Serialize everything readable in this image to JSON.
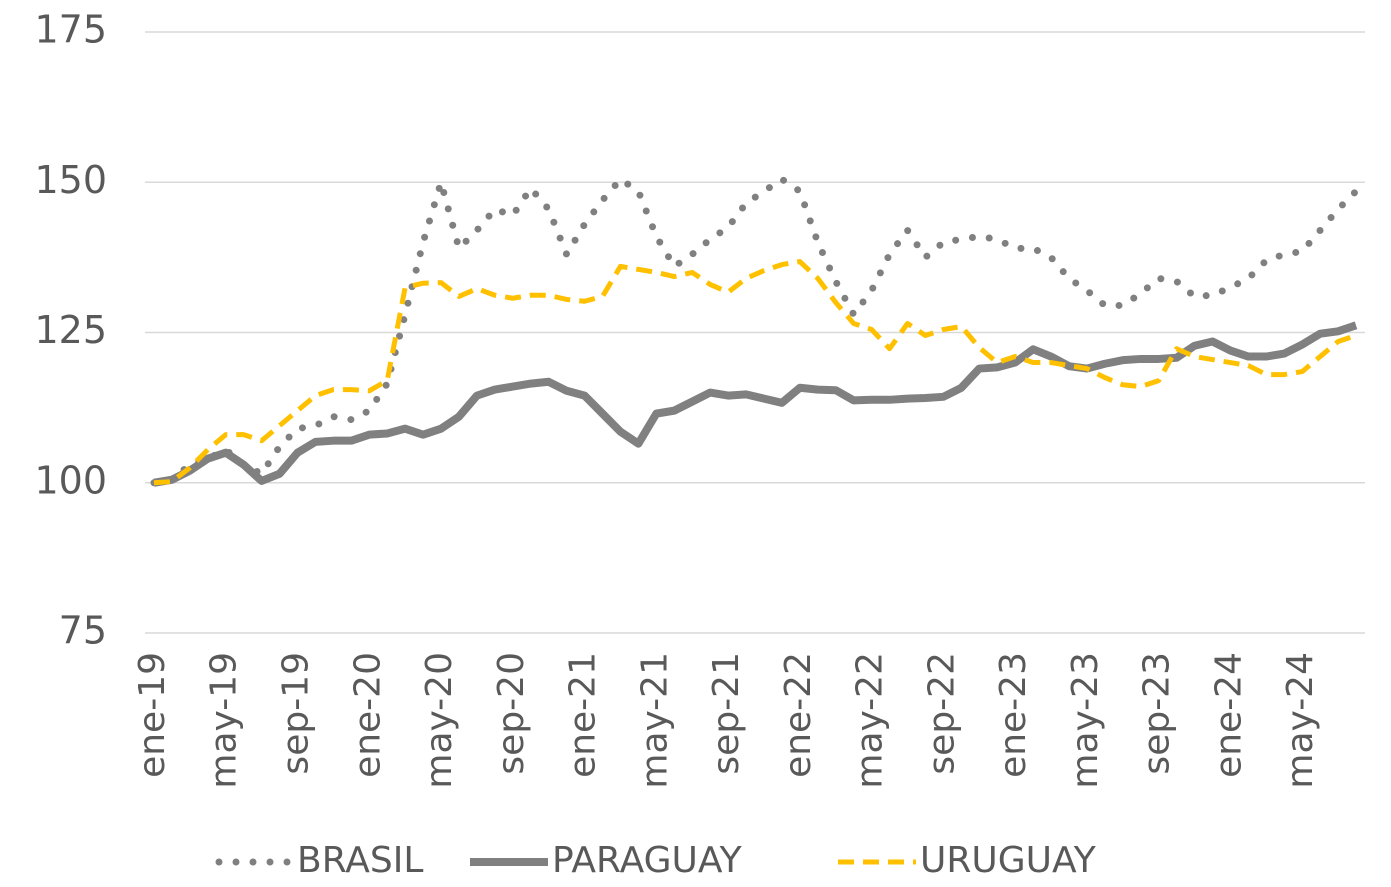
{
  "chart_data": {
    "type": "line",
    "categories": [
      "ene-19",
      null,
      null,
      null,
      "may-19",
      null,
      null,
      null,
      "sep-19",
      null,
      null,
      null,
      "ene-20",
      null,
      null,
      null,
      "may-20",
      null,
      null,
      null,
      "sep-20",
      null,
      null,
      null,
      "ene-21",
      null,
      null,
      null,
      "may-21",
      null,
      null,
      null,
      "sep-21",
      null,
      null,
      null,
      "ene-22",
      null,
      null,
      null,
      "may-22",
      null,
      null,
      null,
      "sep-22",
      null,
      null,
      null,
      "ene-23",
      null,
      null,
      null,
      "may-23",
      null,
      null,
      null,
      "sep-23",
      null,
      null,
      null,
      "ene-24",
      null,
      null,
      null,
      "may-24",
      null,
      null,
      null
    ],
    "series": [
      {
        "name": "BRASIL",
        "color": "#808080",
        "style": "dotted",
        "values": [
          100,
          100.5,
          103,
          104,
          105.5,
          103,
          101.5,
          106,
          109,
          109.5,
          111,
          110.5,
          112,
          116.5,
          128,
          140,
          150,
          139,
          142,
          145.5,
          144.5,
          149,
          145.5,
          138,
          143,
          147,
          150.5,
          148.5,
          141,
          136,
          138,
          140.5,
          142.5,
          146.5,
          148.5,
          150.5,
          148.5,
          140,
          133.5,
          128,
          132,
          138,
          142,
          137.5,
          140,
          140.5,
          141,
          140.5,
          139,
          139,
          137.5,
          134,
          132,
          129.5,
          129.5,
          131.5,
          134,
          133.5,
          131,
          131.2,
          132.5,
          134,
          137,
          138,
          138.5,
          142,
          145.5,
          148.5
        ]
      },
      {
        "name": "PARAGUAY",
        "color": "#808080",
        "style": "solid",
        "values": [
          100,
          100.5,
          102,
          104,
          105,
          103,
          100.3,
          101.5,
          105,
          106.8,
          107,
          107,
          108,
          108.2,
          109,
          108,
          109,
          111,
          114.5,
          115.5,
          116,
          116.5,
          116.8,
          115.3,
          114.5,
          111.5,
          108.5,
          106.5,
          111.5,
          112,
          113.5,
          115,
          114.5,
          114.7,
          114,
          113.3,
          115.8,
          115.5,
          115.4,
          113.7,
          113.8,
          113.8,
          114,
          114.1,
          114.3,
          115.8,
          119,
          119.2,
          120,
          122.2,
          121,
          119.4,
          119,
          119.8,
          120.4,
          120.6,
          120.6,
          120.8,
          122.8,
          123.5,
          122,
          121,
          121,
          121.5,
          123,
          124.8,
          125.2,
          126.2
        ]
      },
      {
        "name": "URUGUAY",
        "color": "#ffc000",
        "style": "dashed",
        "values": [
          100,
          100.2,
          102.5,
          105.5,
          108,
          108,
          107,
          109.5,
          112,
          114.5,
          115.5,
          115.5,
          115.3,
          117,
          132.5,
          133.2,
          133.3,
          131,
          132.3,
          131.2,
          130.7,
          131.2,
          131.2,
          130.5,
          130.2,
          131,
          136,
          135.5,
          135,
          134.3,
          135,
          133,
          131.7,
          134,
          135.3,
          136.3,
          136.8,
          134,
          130,
          126.5,
          125.5,
          122.3,
          126.5,
          124.5,
          125.5,
          126,
          122.5,
          120,
          121,
          120,
          120,
          119.5,
          119,
          117.5,
          116.3,
          116,
          117,
          122.3,
          121,
          120.5,
          120,
          119.5,
          118,
          118,
          118.5,
          121,
          123.5,
          124.5
        ]
      }
    ],
    "ylim": [
      75,
      175
    ],
    "yticks": [
      75,
      100,
      125,
      150,
      175
    ],
    "grid": true,
    "legend": "bottom"
  }
}
